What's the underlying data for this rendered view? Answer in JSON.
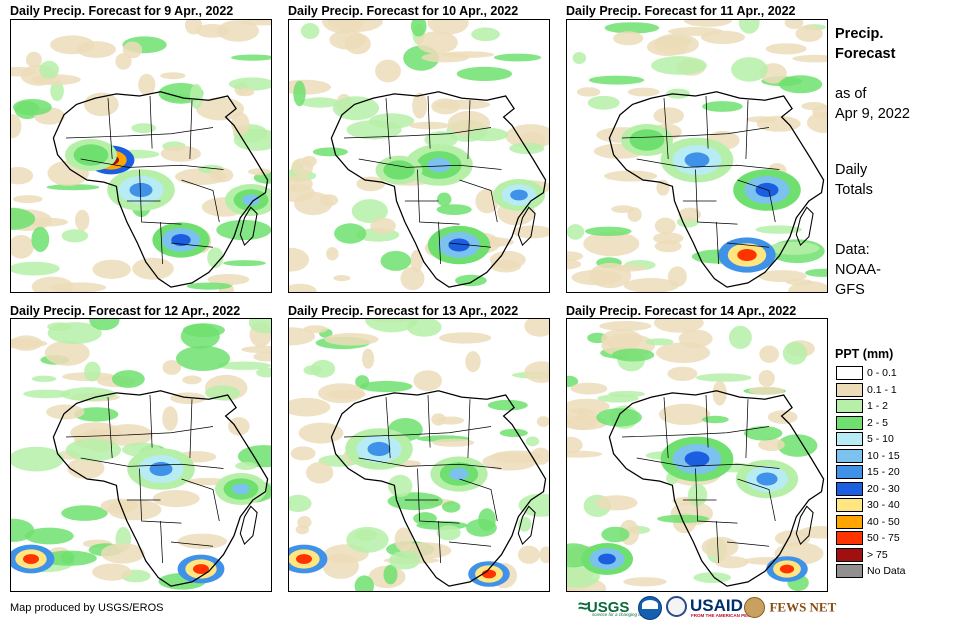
{
  "maps": [
    {
      "title": "Daily Precip. Forecast for 9 Apr., 2022",
      "pattern": "Precipitation concentrated over central Africa, east coast and southeastern Africa"
    },
    {
      "title": "Daily Precip. Forecast for 10 Apr., 2022",
      "pattern": "Rain bands over central Africa and southeast Africa"
    },
    {
      "title": "Daily Precip. Forecast for 11 Apr., 2022",
      "pattern": "Widespread rain over equatorial Africa and southeast coast"
    },
    {
      "title": "Daily Precip. Forecast for 12 Apr., 2022",
      "pattern": "Rain over Congo Basin and southern coast"
    },
    {
      "title": "Daily Precip. Forecast for 13 Apr., 2022",
      "pattern": "Rain over West/Central Africa and South Africa coast"
    },
    {
      "title": "Daily Precip. Forecast for 14 Apr., 2022",
      "pattern": "Heavy rain over central Africa and southeast Africa"
    }
  ],
  "side": {
    "title_line1": "Precip.",
    "title_line2": "Forecast",
    "asof_line1": "as of",
    "asof_line2": "Apr 9, 2022",
    "daily_line1": "Daily",
    "daily_line2": "Totals",
    "data_line1": "Data:",
    "data_line2": "NOAA-",
    "data_line3": "GFS"
  },
  "legend": {
    "title": "PPT (mm)",
    "items": [
      {
        "label": "0 - 0.1",
        "color": "#ffffff"
      },
      {
        "label": "0.1 - 1",
        "color": "#ecdcb8"
      },
      {
        "label": "1 - 2",
        "color": "#b6f0a8"
      },
      {
        "label": "2 - 5",
        "color": "#6fe06f"
      },
      {
        "label": "5 - 10",
        "color": "#b8ecf4"
      },
      {
        "label": "10 - 15",
        "color": "#7cc2ef"
      },
      {
        "label": "15 - 20",
        "color": "#3f92e8"
      },
      {
        "label": "20 - 30",
        "color": "#1c5ee0"
      },
      {
        "label": "30 - 40",
        "color": "#ffe680"
      },
      {
        "label": "40 - 50",
        "color": "#ffa500"
      },
      {
        "label": "50 - 75",
        "color": "#ff3300"
      },
      {
        "label": "> 75",
        "color": "#a01010"
      },
      {
        "label": "No Data",
        "color": "#909090"
      }
    ]
  },
  "footer": {
    "credit": "Map produced by USGS/EROS",
    "usgs": "USGS",
    "usgs_tag": "science for a changing world",
    "usaid": "USAID",
    "usaid_tag": "FROM THE AMERICAN PEOPLE",
    "fewsnet": "FEWS NET"
  }
}
